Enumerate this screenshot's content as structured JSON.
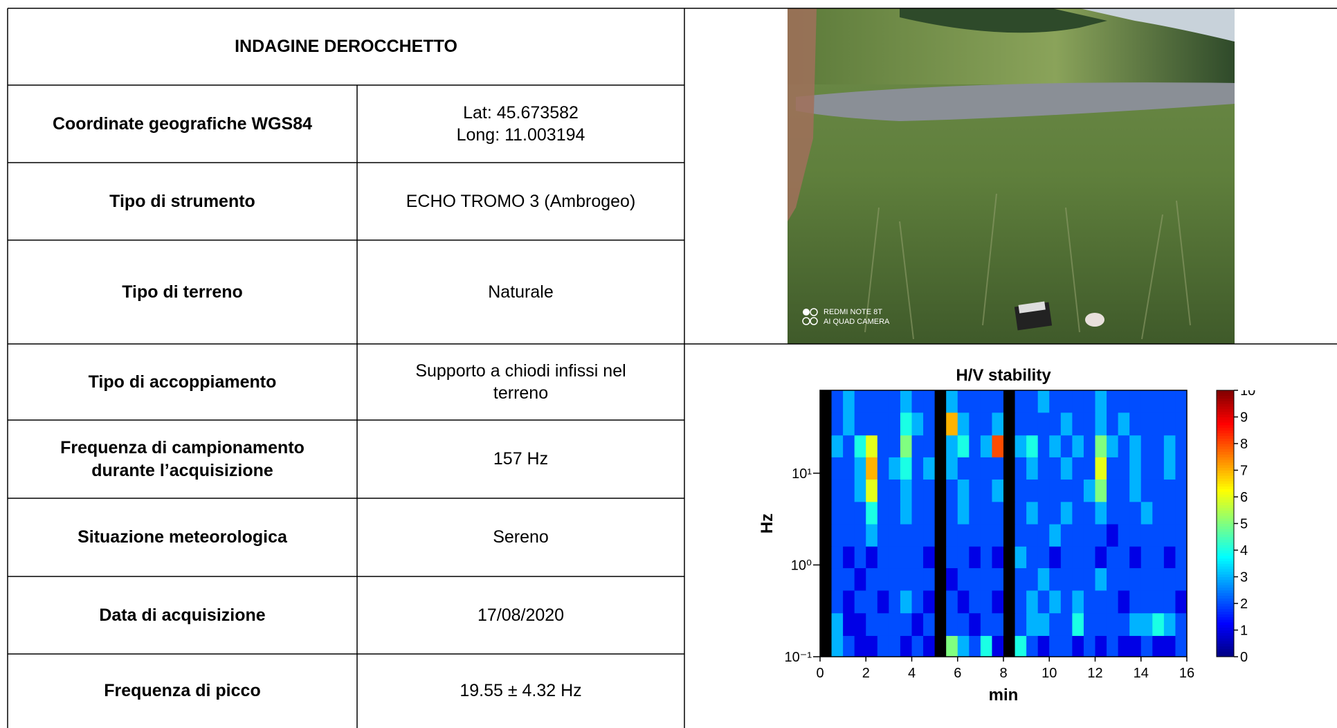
{
  "table": {
    "title": "INDAGINE DEROCCHETTO",
    "rows": [
      [
        [
          "Coordinate geografiche WGS84"
        ],
        [
          "Lat: 45.673582",
          "Long: 11.003194"
        ]
      ],
      [
        [
          "Tipo di strumento"
        ],
        [
          "ECHO TROMO 3 (Ambrogeo)"
        ]
      ],
      [
        [
          "Tipo di terreno"
        ],
        [
          "Naturale"
        ]
      ],
      [
        [
          "Tipo di accoppiamento"
        ],
        [
          "Supporto a chiodi infissi nel",
          "terreno"
        ]
      ],
      [
        [
          "Frequenza di campionamento",
          "durante l’acquisizione"
        ],
        [
          "157 Hz"
        ]
      ],
      [
        [
          "Situazione meteorologica"
        ],
        [
          "Sereno"
        ]
      ],
      [
        [
          "Data di acquisizione"
        ],
        [
          "17/08/2020"
        ]
      ],
      [
        [
          "Frequenza di picco"
        ],
        [
          "19.55 ± 4.32 Hz"
        ]
      ]
    ]
  },
  "photo": {
    "watermark": [
      "REDMI NOTE 8T",
      "AI QUAD CAMERA"
    ]
  },
  "chart_data": {
    "type": "heatmap",
    "title": "H/V stability",
    "x_label": "min",
    "y_label": "Hz",
    "xlim": [
      0,
      16
    ],
    "xticks": [
      0,
      2,
      4,
      6,
      8,
      10,
      12,
      14,
      16
    ],
    "ylim": [
      0.1,
      80
    ],
    "y_log": true,
    "yticks": [
      {
        "value": 0.1,
        "label": "10⁻¹"
      },
      {
        "value": 1,
        "label": "10⁰"
      },
      {
        "value": 10,
        "label": "10¹"
      }
    ],
    "clim": [
      0,
      10
    ],
    "cticks": [
      0,
      1,
      2,
      3,
      4,
      5,
      6,
      7,
      8,
      9,
      10
    ],
    "colormap": "jet",
    "x_bins": [
      0,
      0.5,
      1,
      1.5,
      2,
      2.5,
      3,
      3.5,
      4,
      4.5,
      5,
      5.5,
      6,
      6.5,
      7,
      7.5,
      8,
      8.5,
      9,
      9.5,
      10,
      10.5,
      11,
      11.5,
      12,
      12.5,
      13,
      13.5,
      14,
      14.5,
      15,
      15.5,
      16
    ],
    "y_bins": [
      0.1,
      0.17,
      0.3,
      0.53,
      0.93,
      1.6,
      2.8,
      4.9,
      8.6,
      15,
      26,
      46,
      80
    ],
    "values": [
      [
        null,
        3,
        2,
        1,
        1,
        2,
        2,
        1,
        2,
        1,
        null,
        5,
        3,
        2,
        4,
        1,
        null,
        4,
        2,
        1,
        2,
        2,
        1,
        2,
        1,
        2,
        1,
        1,
        2,
        1,
        1,
        2
      ],
      [
        null,
        3,
        1,
        1,
        2,
        2,
        2,
        2,
        1,
        2,
        null,
        2,
        2,
        1,
        2,
        2,
        null,
        2,
        3,
        3,
        2,
        2,
        4,
        2,
        2,
        2,
        2,
        3,
        3,
        4,
        3,
        2
      ],
      [
        null,
        2,
        1,
        2,
        2,
        1,
        2,
        3,
        2,
        1,
        null,
        2,
        1,
        2,
        2,
        1,
        null,
        2,
        3,
        2,
        3,
        2,
        3,
        2,
        2,
        2,
        1,
        2,
        2,
        2,
        2,
        1
      ],
      [
        null,
        2,
        2,
        1,
        2,
        2,
        2,
        2,
        2,
        2,
        null,
        1,
        2,
        2,
        2,
        2,
        null,
        2,
        2,
        3,
        2,
        2,
        2,
        2,
        3,
        2,
        2,
        2,
        2,
        2,
        2,
        2
      ],
      [
        null,
        2,
        1,
        2,
        1,
        2,
        2,
        2,
        2,
        1,
        null,
        2,
        2,
        1,
        2,
        1,
        null,
        3,
        2,
        2,
        1,
        2,
        2,
        2,
        1,
        2,
        2,
        1,
        2,
        2,
        1,
        2
      ],
      [
        null,
        2,
        2,
        2,
        3,
        2,
        2,
        2,
        2,
        2,
        null,
        2,
        2,
        2,
        2,
        2,
        null,
        2,
        2,
        2,
        3,
        2,
        2,
        2,
        2,
        1,
        2,
        2,
        2,
        2,
        2,
        2
      ],
      [
        null,
        2,
        2,
        2,
        4,
        2,
        2,
        3,
        2,
        2,
        null,
        2,
        3,
        2,
        2,
        2,
        null,
        2,
        3,
        2,
        2,
        3,
        2,
        2,
        3,
        2,
        2,
        2,
        3,
        2,
        2,
        2
      ],
      [
        null,
        2,
        2,
        3,
        6,
        2,
        2,
        3,
        2,
        2,
        null,
        2,
        3,
        2,
        2,
        3,
        null,
        2,
        2,
        2,
        2,
        2,
        2,
        3,
        5,
        2,
        2,
        3,
        2,
        2,
        2,
        2
      ],
      [
        null,
        2,
        2,
        3,
        7,
        2,
        3,
        4,
        2,
        3,
        null,
        3,
        2,
        2,
        2,
        2,
        null,
        2,
        3,
        2,
        2,
        3,
        2,
        2,
        6,
        2,
        2,
        3,
        2,
        2,
        3,
        2
      ],
      [
        null,
        3,
        2,
        4,
        6,
        2,
        2,
        5,
        2,
        2,
        null,
        3,
        4,
        2,
        3,
        8,
        null,
        3,
        4,
        2,
        3,
        2,
        3,
        2,
        5,
        3,
        2,
        3,
        2,
        2,
        3,
        2
      ],
      [
        null,
        2,
        3,
        2,
        2,
        2,
        2,
        4,
        3,
        2,
        null,
        7,
        3,
        2,
        2,
        3,
        null,
        2,
        2,
        2,
        2,
        3,
        2,
        2,
        3,
        2,
        3,
        2,
        2,
        2,
        2,
        2
      ],
      [
        null,
        2,
        3,
        2,
        2,
        2,
        2,
        3,
        2,
        2,
        null,
        3,
        2,
        2,
        2,
        2,
        null,
        2,
        2,
        3,
        2,
        2,
        2,
        2,
        3,
        2,
        2,
        2,
        2,
        2,
        2,
        2
      ]
    ]
  }
}
